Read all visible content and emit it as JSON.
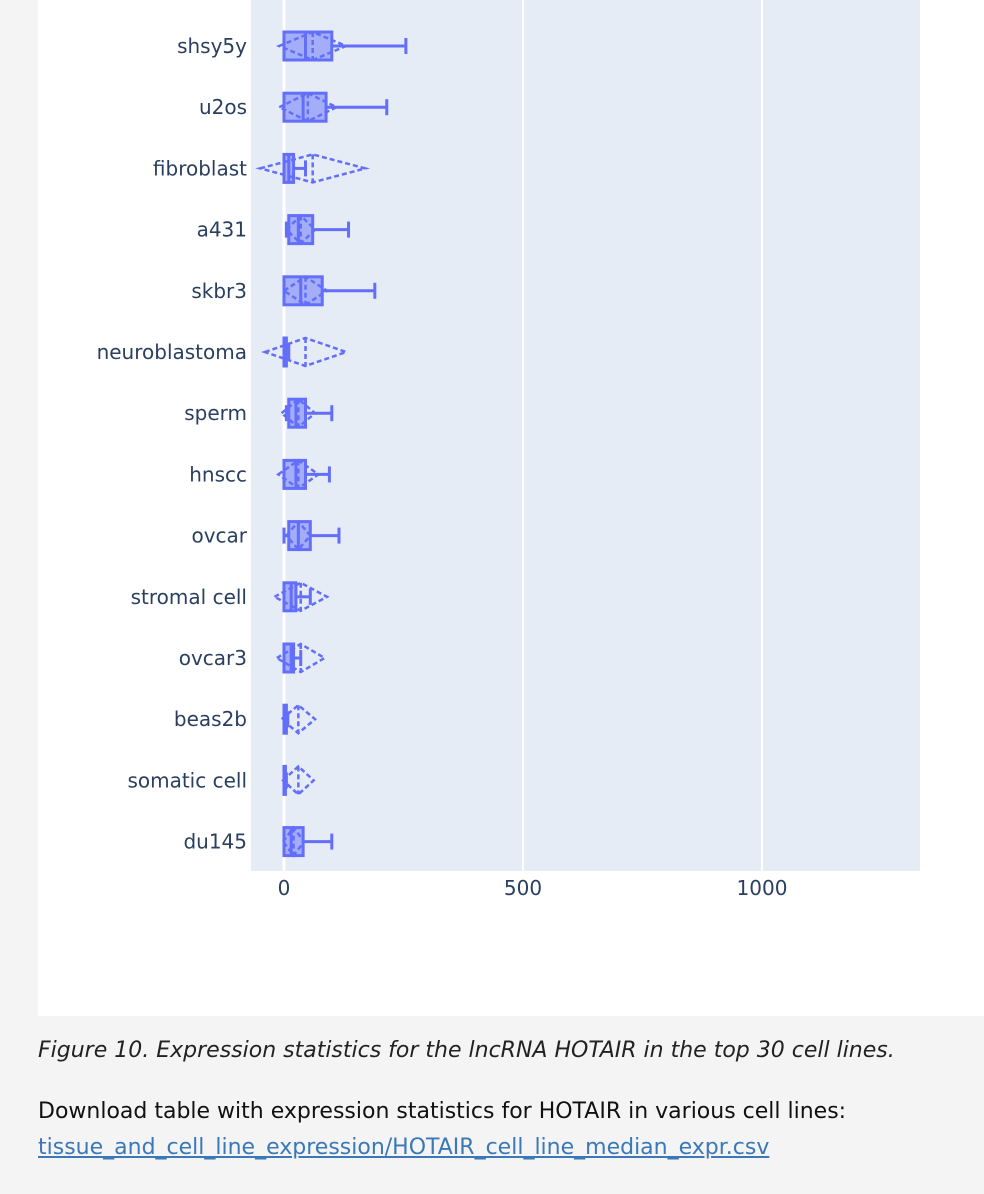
{
  "figure": {
    "caption": "Figure 10. Expression statistics for the lncRNA HOTAIR in the top 30 cell lines.",
    "download_text": "Download table with expression statistics for HOTAIR in various cell lines:",
    "download_link": "tissue_and_cell_line_expression/HOTAIR_cell_line_median_expr.csv"
  },
  "chart_data": {
    "type": "box",
    "orientation": "horizontal",
    "xlabel": "",
    "ylabel": "",
    "xlim": [
      -70,
      1330
    ],
    "x_ticks": [
      0,
      500,
      1000
    ],
    "grid": true,
    "colors": {
      "plot_bg": "#e5ecf6",
      "box": "#636efa",
      "box_fill": "rgba(99,110,250,0.5)",
      "grid": "#ffffff"
    },
    "categories": [
      "shsy5y",
      "u2os",
      "fibroblast",
      "a431",
      "skbr3",
      "neuroblastoma",
      "sperm",
      "hnscc",
      "ovcar",
      "stromal cell",
      "ovcar3",
      "beas2b",
      "somatic cell",
      "du145"
    ],
    "series": [
      {
        "category": "shsy5y",
        "min": 0,
        "q1": 0,
        "median": 45,
        "q3": 100,
        "max": 255,
        "mean": 60,
        "sd": 70
      },
      {
        "category": "u2os",
        "min": 0,
        "q1": 0,
        "median": 40,
        "q3": 88,
        "max": 215,
        "mean": 50,
        "sd": 60
      },
      {
        "category": "fibroblast",
        "min": 0,
        "q1": 0,
        "median": 10,
        "q3": 20,
        "max": 45,
        "mean": 60,
        "sd": 110
      },
      {
        "category": "a431",
        "min": 5,
        "q1": 10,
        "median": 30,
        "q3": 60,
        "max": 135,
        "mean": 35,
        "sd": 30
      },
      {
        "category": "skbr3",
        "min": 0,
        "q1": 0,
        "median": 35,
        "q3": 80,
        "max": 190,
        "mean": 45,
        "sd": 45
      },
      {
        "category": "neuroblastoma",
        "min": 0,
        "q1": 0,
        "median": 2,
        "q3": 5,
        "max": 10,
        "mean": 45,
        "sd": 85
      },
      {
        "category": "sperm",
        "min": 5,
        "q1": 10,
        "median": 25,
        "q3": 45,
        "max": 100,
        "mean": 30,
        "sd": 35
      },
      {
        "category": "hnscc",
        "min": 0,
        "q1": 0,
        "median": 25,
        "q3": 45,
        "max": 95,
        "mean": 30,
        "sd": 42
      },
      {
        "category": "ovcar",
        "min": 0,
        "q1": 10,
        "median": 30,
        "q3": 55,
        "max": 115,
        "mean": 30,
        "sd": 25
      },
      {
        "category": "stromal cell",
        "min": 0,
        "q1": 0,
        "median": 15,
        "q3": 25,
        "max": 55,
        "mean": 35,
        "sd": 55
      },
      {
        "category": "ovcar3",
        "min": 0,
        "q1": 0,
        "median": 15,
        "q3": 20,
        "max": 35,
        "mean": 35,
        "sd": 50
      },
      {
        "category": "beas2b",
        "min": 0,
        "q1": 0,
        "median": 2,
        "q3": 5,
        "max": 8,
        "mean": 30,
        "sd": 35
      },
      {
        "category": "somatic cell",
        "min": 0,
        "q1": 0,
        "median": 2,
        "q3": 3,
        "max": 5,
        "mean": 30,
        "sd": 32
      },
      {
        "category": "du145",
        "min": 0,
        "q1": 0,
        "median": 15,
        "q3": 40,
        "max": 100,
        "mean": 20,
        "sd": 22
      }
    ]
  }
}
